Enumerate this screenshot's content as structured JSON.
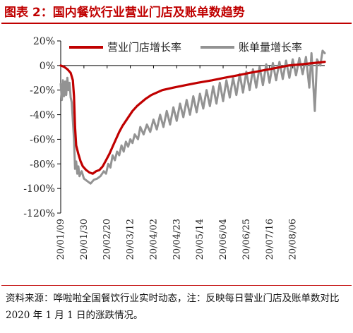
{
  "title": "图表 2：国内餐饮行业营业门店及账单数趋势",
  "note": "资料来源：哗啦啦全国餐饮行业实时动态，注：反映每日营业门店及账单数对比 2020 年 1 月 1 日的涨跌情况。",
  "chart_data": {
    "type": "line",
    "ylim": [
      -120,
      20
    ],
    "yticks": [
      20,
      0,
      -20,
      -40,
      -60,
      -80,
      -100,
      -120
    ],
    "ytick_labels": [
      "20%",
      "0%",
      "-20%",
      "-40%",
      "-60%",
      "-80%",
      "-100%",
      "-120%"
    ],
    "xlim": [
      "2020-01-09",
      "2020-09-04"
    ],
    "xtick_dates": [
      "2020-01-09",
      "2020-01-30",
      "2020-02-20",
      "2020-03-12",
      "2020-04-02",
      "2020-04-23",
      "2020-05-14",
      "2020-06-04",
      "2020-06-25",
      "2020-07-16",
      "2020-08-06"
    ],
    "xtick_labels": [
      "20/01/09",
      "20/01/30",
      "20/02/20",
      "20/03/12",
      "20/04/02",
      "20/04/23",
      "20/05/14",
      "20/06/04",
      "20/06/25",
      "20/07/16",
      "20/08/06"
    ],
    "legend_position": "top",
    "series": [
      {
        "name": "营业门店增长率",
        "color": "#c00000",
        "points": [
          [
            "2020-01-09",
            0
          ],
          [
            "2020-01-12",
            -1
          ],
          [
            "2020-01-15",
            -3
          ],
          [
            "2020-01-18",
            -6
          ],
          [
            "2020-01-20",
            -12
          ],
          [
            "2020-01-21",
            -25
          ],
          [
            "2020-01-22",
            -50
          ],
          [
            "2020-01-23",
            -65
          ],
          [
            "2020-01-25",
            -72
          ],
          [
            "2020-01-27",
            -78
          ],
          [
            "2020-01-29",
            -82
          ],
          [
            "2020-02-01",
            -85
          ],
          [
            "2020-02-04",
            -87
          ],
          [
            "2020-02-07",
            -88
          ],
          [
            "2020-02-10",
            -86
          ],
          [
            "2020-02-13",
            -85
          ],
          [
            "2020-02-16",
            -82
          ],
          [
            "2020-02-19",
            -77
          ],
          [
            "2020-02-22",
            -72
          ],
          [
            "2020-02-25",
            -66
          ],
          [
            "2020-02-28",
            -60
          ],
          [
            "2020-03-02",
            -54
          ],
          [
            "2020-03-05",
            -49
          ],
          [
            "2020-03-08",
            -45
          ],
          [
            "2020-03-11",
            -41
          ],
          [
            "2020-03-14",
            -37
          ],
          [
            "2020-03-18",
            -33
          ],
          [
            "2020-03-22",
            -30
          ],
          [
            "2020-03-26",
            -27
          ],
          [
            "2020-03-31",
            -24
          ],
          [
            "2020-04-05",
            -22
          ],
          [
            "2020-04-10",
            -20
          ],
          [
            "2020-04-20",
            -18
          ],
          [
            "2020-05-01",
            -16
          ],
          [
            "2020-05-12",
            -14
          ],
          [
            "2020-05-25",
            -12
          ],
          [
            "2020-06-05",
            -10
          ],
          [
            "2020-06-17",
            -8
          ],
          [
            "2020-06-28",
            -6
          ],
          [
            "2020-07-10",
            -4
          ],
          [
            "2020-07-22",
            -2
          ],
          [
            "2020-08-02",
            0
          ],
          [
            "2020-08-14",
            1
          ],
          [
            "2020-08-25",
            2
          ],
          [
            "2020-09-04",
            3
          ]
        ]
      },
      {
        "name": "账单量增长率",
        "color": "#939393",
        "points": [
          [
            "2020-01-09",
            -15
          ],
          [
            "2020-01-10",
            -28
          ],
          [
            "2020-01-11",
            -12
          ],
          [
            "2020-01-12",
            -25
          ],
          [
            "2020-01-13",
            -13
          ],
          [
            "2020-01-14",
            -24
          ],
          [
            "2020-01-15",
            -10
          ],
          [
            "2020-01-16",
            -20
          ],
          [
            "2020-01-17",
            -14
          ],
          [
            "2020-01-18",
            -26
          ],
          [
            "2020-01-19",
            -30
          ],
          [
            "2020-01-20",
            -45
          ],
          [
            "2020-01-21",
            -60
          ],
          [
            "2020-01-22",
            -84
          ],
          [
            "2020-01-23",
            -78
          ],
          [
            "2020-01-24",
            -88
          ],
          [
            "2020-01-25",
            -82
          ],
          [
            "2020-01-26",
            -90
          ],
          [
            "2020-01-28",
            -86
          ],
          [
            "2020-01-30",
            -92
          ],
          [
            "2020-02-02",
            -94
          ],
          [
            "2020-02-05",
            -96
          ],
          [
            "2020-02-08",
            -93
          ],
          [
            "2020-02-11",
            -92
          ],
          [
            "2020-02-14",
            -90
          ],
          [
            "2020-02-17",
            -86
          ],
          [
            "2020-02-19",
            -88
          ],
          [
            "2020-02-21",
            -80
          ],
          [
            "2020-02-23",
            -83
          ],
          [
            "2020-02-25",
            -73
          ],
          [
            "2020-02-27",
            -77
          ],
          [
            "2020-02-29",
            -70
          ],
          [
            "2020-03-02",
            -73
          ],
          [
            "2020-03-04",
            -65
          ],
          [
            "2020-03-06",
            -70
          ],
          [
            "2020-03-08",
            -62
          ],
          [
            "2020-03-10",
            -66
          ],
          [
            "2020-03-12",
            -60
          ],
          [
            "2020-03-14",
            -63
          ],
          [
            "2020-03-16",
            -56
          ],
          [
            "2020-03-19",
            -60
          ],
          [
            "2020-03-21",
            -50
          ],
          [
            "2020-03-24",
            -56
          ],
          [
            "2020-03-27",
            -48
          ],
          [
            "2020-03-30",
            -54
          ],
          [
            "2020-04-02",
            -44
          ],
          [
            "2020-04-05",
            -52
          ],
          [
            "2020-04-08",
            -40
          ],
          [
            "2020-04-11",
            -50
          ],
          [
            "2020-04-14",
            -37
          ],
          [
            "2020-04-17",
            -48
          ],
          [
            "2020-04-20",
            -34
          ],
          [
            "2020-04-23",
            -45
          ],
          [
            "2020-04-26",
            -31
          ],
          [
            "2020-04-29",
            -42
          ],
          [
            "2020-05-02",
            -28
          ],
          [
            "2020-05-05",
            -40
          ],
          [
            "2020-05-08",
            -25
          ],
          [
            "2020-05-11",
            -38
          ],
          [
            "2020-05-14",
            -23
          ],
          [
            "2020-05-17",
            -35
          ],
          [
            "2020-05-20",
            -20
          ],
          [
            "2020-05-23",
            -33
          ],
          [
            "2020-05-26",
            -17
          ],
          [
            "2020-05-29",
            -31
          ],
          [
            "2020-06-01",
            -14
          ],
          [
            "2020-06-04",
            -29
          ],
          [
            "2020-06-07",
            -12
          ],
          [
            "2020-06-10",
            -26
          ],
          [
            "2020-06-13",
            -10
          ],
          [
            "2020-06-16",
            -24
          ],
          [
            "2020-06-19",
            -7
          ],
          [
            "2020-06-22",
            -22
          ],
          [
            "2020-06-25",
            -5
          ],
          [
            "2020-06-28",
            -20
          ],
          [
            "2020-07-01",
            -3
          ],
          [
            "2020-07-04",
            -18
          ],
          [
            "2020-07-07",
            -1
          ],
          [
            "2020-07-10",
            -16
          ],
          [
            "2020-07-13",
            1
          ],
          [
            "2020-07-16",
            -14
          ],
          [
            "2020-07-19",
            2
          ],
          [
            "2020-07-22",
            -12
          ],
          [
            "2020-07-25",
            3
          ],
          [
            "2020-07-28",
            -11
          ],
          [
            "2020-07-31",
            4
          ],
          [
            "2020-08-03",
            -10
          ],
          [
            "2020-08-06",
            5
          ],
          [
            "2020-08-09",
            -8
          ],
          [
            "2020-08-12",
            6
          ],
          [
            "2020-08-15",
            -7
          ],
          [
            "2020-08-18",
            7
          ],
          [
            "2020-08-21",
            -18
          ],
          [
            "2020-08-23",
            10
          ],
          [
            "2020-08-26",
            -37
          ],
          [
            "2020-08-28",
            5
          ],
          [
            "2020-08-31",
            0
          ],
          [
            "2020-09-02",
            12
          ],
          [
            "2020-09-04",
            10
          ]
        ]
      }
    ]
  }
}
